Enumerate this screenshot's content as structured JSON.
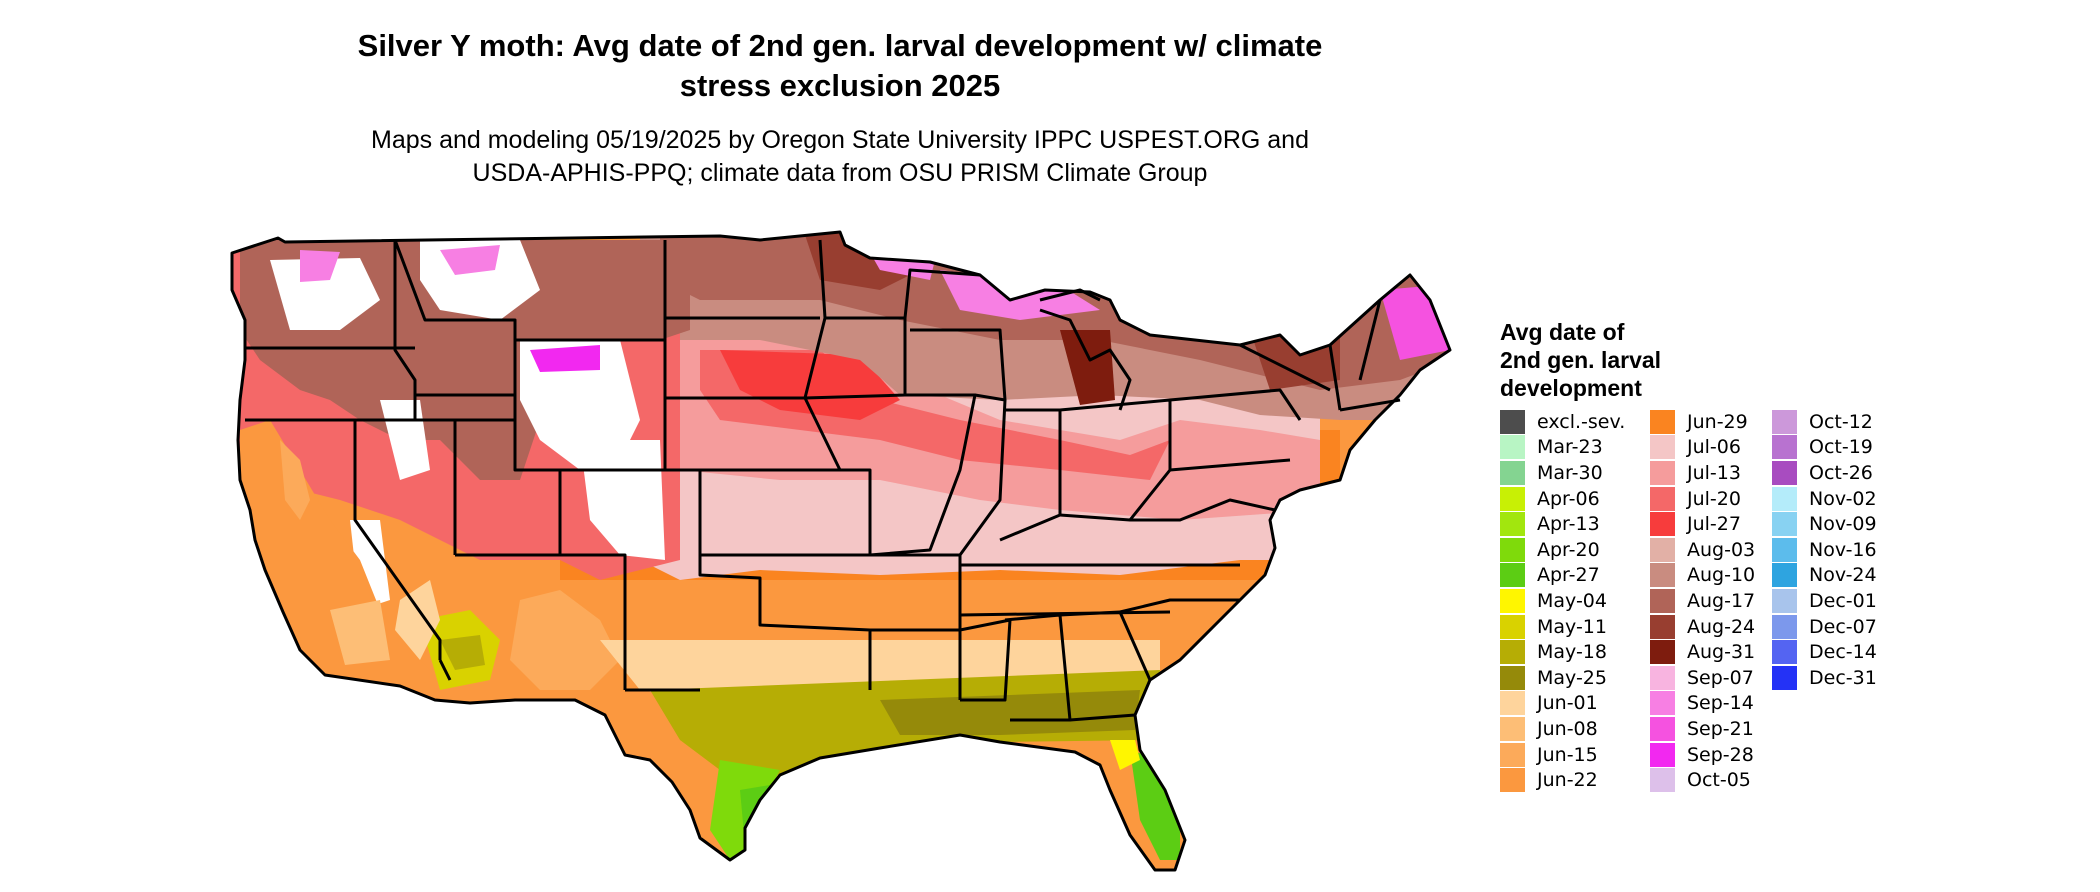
{
  "title_line1": "Silver Y moth: Avg date of 2nd gen. larval development w/ climate",
  "title_line2": "stress exclusion 2025",
  "subtitle_line1": "Maps and modeling 05/19/2025 by Oregon State University IPPC USPEST.ORG and",
  "subtitle_line2": "USDA-APHIS-PPQ; climate data from OSU PRISM Climate Group",
  "legend": {
    "title_line1": "Avg date of",
    "title_line2": "2nd gen. larval",
    "title_line3": "development",
    "columns": [
      [
        {
          "label": "excl.-sev.",
          "color": "#4d4d4d"
        },
        {
          "label": "Mar-23",
          "color": "#b8f5c4"
        },
        {
          "label": "Mar-30",
          "color": "#84d491"
        },
        {
          "label": "Apr-06",
          "color": "#c8f005"
        },
        {
          "label": "Apr-13",
          "color": "#a2e60e"
        },
        {
          "label": "Apr-20",
          "color": "#7fda0b"
        },
        {
          "label": "Apr-27",
          "color": "#5ccd14"
        },
        {
          "label": "May-04",
          "color": "#fff600"
        },
        {
          "label": "May-11",
          "color": "#d9d200"
        },
        {
          "label": "May-18",
          "color": "#b6ad05"
        },
        {
          "label": "May-25",
          "color": "#958a0a"
        },
        {
          "label": "Jun-01",
          "color": "#fed49c"
        },
        {
          "label": "Jun-08",
          "color": "#fdbe76"
        },
        {
          "label": "Jun-15",
          "color": "#fcaa5a"
        },
        {
          "label": "Jun-22",
          "color": "#fb983f"
        }
      ],
      [
        {
          "label": "Jun-29",
          "color": "#fa8420"
        },
        {
          "label": "Jul-06",
          "color": "#f4c6c6"
        },
        {
          "label": "Jul-13",
          "color": "#f59c9c"
        },
        {
          "label": "Jul-20",
          "color": "#f46868"
        },
        {
          "label": "Jul-27",
          "color": "#f73c3c"
        },
        {
          "label": "Aug-03",
          "color": "#e2b0a6"
        },
        {
          "label": "Aug-10",
          "color": "#c98c80"
        },
        {
          "label": "Aug-17",
          "color": "#b06458"
        },
        {
          "label": "Aug-24",
          "color": "#983e30"
        },
        {
          "label": "Aug-31",
          "color": "#7e1c0e"
        },
        {
          "label": "Sep-07",
          "color": "#f8b4e0"
        },
        {
          "label": "Sep-14",
          "color": "#f77fe3"
        },
        {
          "label": "Sep-21",
          "color": "#f552e0"
        },
        {
          "label": "Sep-28",
          "color": "#f228f0"
        },
        {
          "label": "Oct-05",
          "color": "#ddc0ea"
        }
      ],
      [
        {
          "label": "Oct-12",
          "color": "#cc98da"
        },
        {
          "label": "Oct-19",
          "color": "#b872d0"
        },
        {
          "label": "Oct-26",
          "color": "#a84cc0"
        },
        {
          "label": "Nov-02",
          "color": "#b4ecfa"
        },
        {
          "label": "Nov-09",
          "color": "#88d2f2"
        },
        {
          "label": "Nov-16",
          "color": "#5cbcec"
        },
        {
          "label": "Nov-24",
          "color": "#2ea4e0"
        },
        {
          "label": "Dec-01",
          "color": "#a8c4ec"
        },
        {
          "label": "Dec-07",
          "color": "#7c98ec"
        },
        {
          "label": "Dec-14",
          "color": "#5464f2"
        },
        {
          "label": "Dec-31",
          "color": "#2432f6"
        }
      ]
    ]
  }
}
